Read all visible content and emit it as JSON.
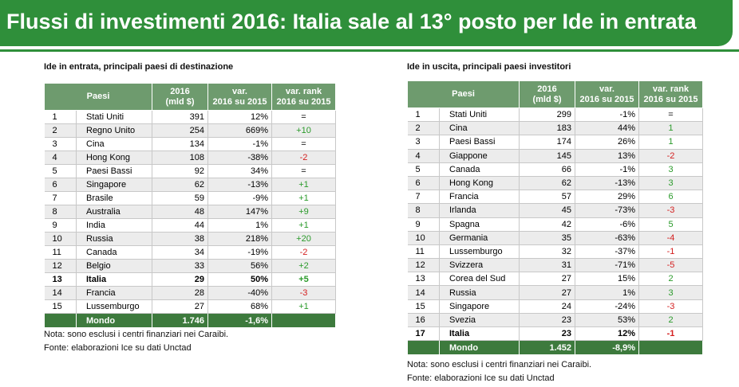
{
  "header": {
    "title": "Flussi di investimenti 2016: Italia sale al 13° posto per Ide in entrata"
  },
  "tables": [
    {
      "title": "Ide in entrata, principali paesi di destinazione",
      "headers": [
        [
          "Paesi"
        ],
        [
          "2016",
          "(mld $)"
        ],
        [
          "var.",
          "2016 su 2015"
        ],
        [
          "var. rank",
          "2016 su 2015"
        ]
      ],
      "rows": [
        {
          "cells": [
            "1",
            "Stati Uniti",
            "391",
            "12%",
            "="
          ]
        },
        {
          "cells": [
            "2",
            "Regno Unito",
            "254",
            "669%",
            "+10"
          ]
        },
        {
          "cells": [
            "3",
            "Cina",
            "134",
            "-1%",
            "="
          ]
        },
        {
          "cells": [
            "4",
            "Hong Kong",
            "108",
            "-38%",
            "-2"
          ]
        },
        {
          "cells": [
            "5",
            "Paesi Bassi",
            "92",
            "34%",
            "="
          ]
        },
        {
          "cells": [
            "6",
            "Singapore",
            "62",
            "-13%",
            "+1"
          ]
        },
        {
          "cells": [
            "7",
            "Brasile",
            "59",
            "-9%",
            "+1"
          ]
        },
        {
          "cells": [
            "8",
            "Australia",
            "48",
            "147%",
            "+9"
          ]
        },
        {
          "cells": [
            "9",
            "India",
            "44",
            "1%",
            "+1"
          ]
        },
        {
          "cells": [
            "10",
            "Russia",
            "38",
            "218%",
            "+20"
          ]
        },
        {
          "cells": [
            "11",
            "Canada",
            "34",
            "-19%",
            "-2"
          ]
        },
        {
          "cells": [
            "12",
            "Belgio",
            "33",
            "56%",
            "+2"
          ]
        },
        {
          "cells": [
            "13",
            "Italia",
            "29",
            "50%",
            "+5"
          ],
          "emphasis": true
        },
        {
          "cells": [
            "14",
            "Francia",
            "28",
            "-40%",
            "-3"
          ]
        },
        {
          "cells": [
            "15",
            "Lussemburgo",
            "27",
            "68%",
            "+1"
          ]
        }
      ],
      "total": [
        "Mondo",
        "1.746",
        "-1,6%"
      ],
      "notes": [
        "Nota: sono esclusi i centri finanziari nei Caraibi.",
        "Fonte: elaborazioni Ice su dati Unctad"
      ]
    },
    {
      "title": "Ide in uscita, principali paesi investitori",
      "headers": [
        [
          "Paesi"
        ],
        [
          "2016",
          "(mld $)"
        ],
        [
          "var.",
          "2016 su 2015"
        ],
        [
          "var. rank",
          "2016 su 2015"
        ]
      ],
      "rows": [
        {
          "cells": [
            "1",
            "Stati Uniti",
            "299",
            "-1%",
            "="
          ]
        },
        {
          "cells": [
            "2",
            "Cina",
            "183",
            "44%",
            "1"
          ]
        },
        {
          "cells": [
            "3",
            "Paesi Bassi",
            "174",
            "26%",
            "1"
          ]
        },
        {
          "cells": [
            "4",
            "Giappone",
            "145",
            "13%",
            "-2"
          ]
        },
        {
          "cells": [
            "5",
            "Canada",
            "66",
            "-1%",
            "3"
          ]
        },
        {
          "cells": [
            "6",
            "Hong Kong",
            "62",
            "-13%",
            "3"
          ]
        },
        {
          "cells": [
            "7",
            "Francia",
            "57",
            "29%",
            "6"
          ]
        },
        {
          "cells": [
            "8",
            "Irlanda",
            "45",
            "-73%",
            "-3"
          ]
        },
        {
          "cells": [
            "9",
            "Spagna",
            "42",
            "-6%",
            "5"
          ]
        },
        {
          "cells": [
            "10",
            "Germania",
            "35",
            "-63%",
            "-4"
          ]
        },
        {
          "cells": [
            "11",
            "Lussemburgo",
            "32",
            "-37%",
            "-1"
          ]
        },
        {
          "cells": [
            "12",
            "Svizzera",
            "31",
            "-71%",
            "-5"
          ]
        },
        {
          "cells": [
            "13",
            "Corea del Sud",
            "27",
            "15%",
            "2"
          ]
        },
        {
          "cells": [
            "14",
            "Russia",
            "27",
            "1%",
            "3"
          ]
        },
        {
          "cells": [
            "15",
            "Singapore",
            "24",
            "-24%",
            "-3"
          ]
        },
        {
          "cells": [
            "16",
            "Svezia",
            "23",
            "53%",
            "2"
          ]
        },
        {
          "cells": [
            "17",
            "Italia",
            "23",
            "12%",
            "-1"
          ],
          "emphasis": true
        }
      ],
      "total": [
        "Mondo",
        "1.452",
        "-8,9%"
      ],
      "notes": [
        "Nota: sono esclusi i centri finanziari nei Caraibi.",
        "Fonte: elaborazioni Ice su dati Unctad"
      ]
    }
  ]
}
